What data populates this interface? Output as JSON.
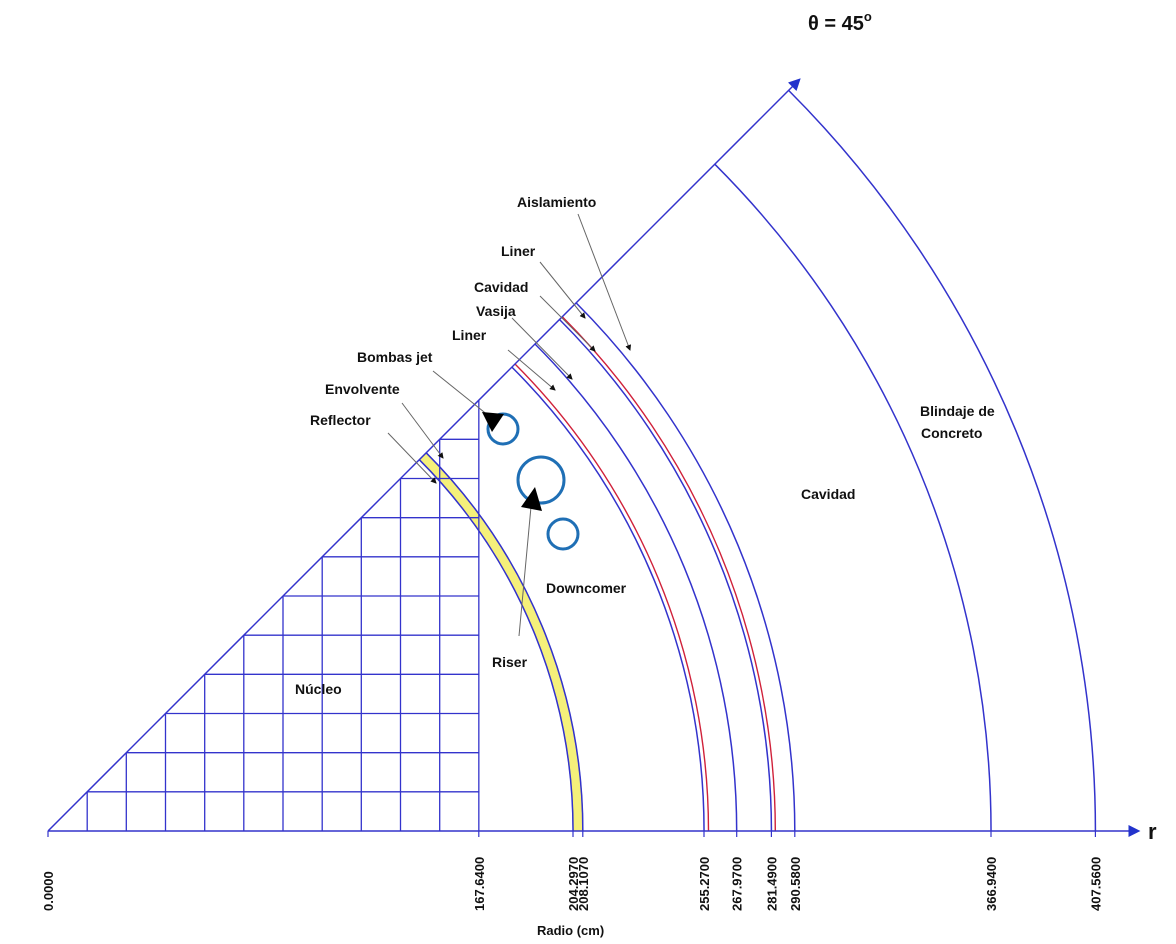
{
  "diagram": {
    "theta_label": "θ = 45",
    "theta_degree": "o",
    "r_axis_label": "r",
    "x_axis_title": "Radio (cm)",
    "radii": [
      {
        "value": 0.0,
        "text": "0.0000"
      },
      {
        "value": 167.64,
        "text": "167.6400"
      },
      {
        "value": 204.297,
        "text": "204.2970"
      },
      {
        "value": 208.107,
        "text": "208.1070"
      },
      {
        "value": 255.27,
        "text": "255.2700"
      },
      {
        "value": 267.97,
        "text": "267.9700"
      },
      {
        "value": 281.49,
        "text": "281.4900"
      },
      {
        "value": 290.58,
        "text": "290.5800"
      },
      {
        "value": 366.94,
        "text": "366.9400"
      },
      {
        "value": 407.56,
        "text": "407.5600"
      }
    ],
    "regions": {
      "nucleo": "Núcleo",
      "reflector": "Reflector",
      "envolvente": "Envolvente",
      "bombas_jet": "Bombas jet",
      "riser": "Riser",
      "downcomer": "Downcomer",
      "liner_inner": "Liner",
      "vasija": "Vasija",
      "cavidad_gap": "Cavidad",
      "liner_outer": "Liner",
      "aislamiento": "Aislamiento",
      "cavidad_main": "Cavidad",
      "blindaje_line1": "Blindaje de",
      "blindaje_line2": "Concreto"
    },
    "colors": {
      "line": "#3333cc",
      "envolvente_fill": "#f5f07a",
      "liner": "#d0213a",
      "jet_pump": "#1f6fb5",
      "text": "#111111"
    }
  }
}
